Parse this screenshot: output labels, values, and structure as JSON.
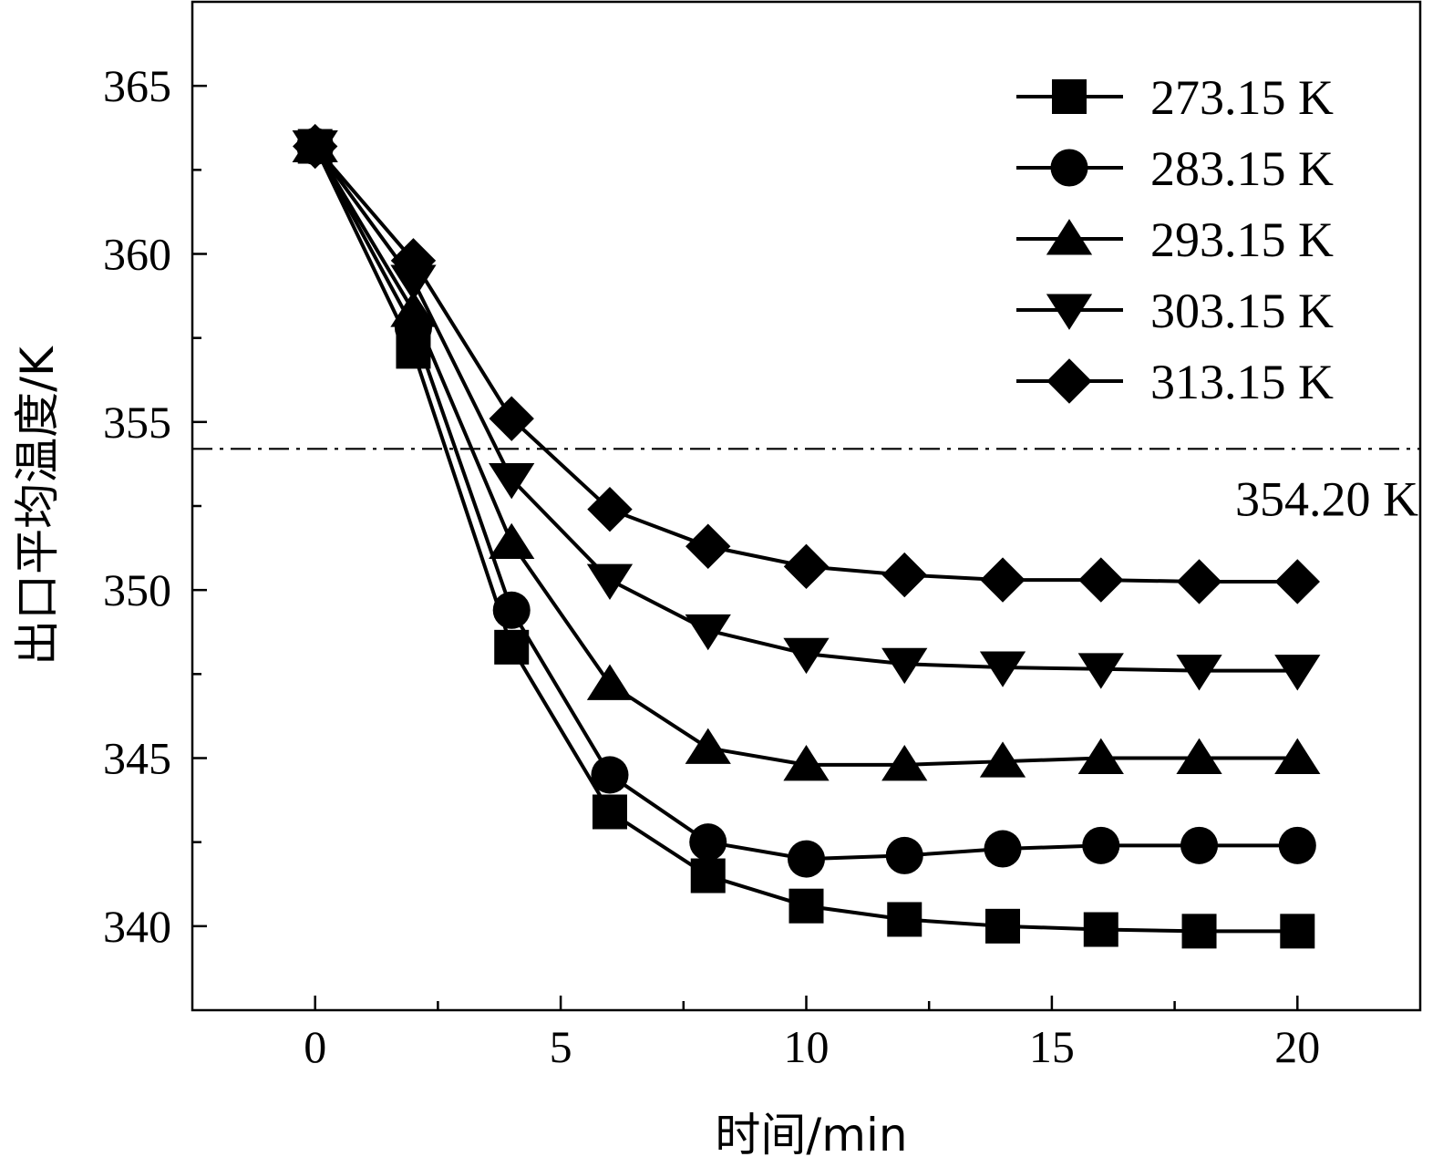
{
  "chart_data": {
    "type": "line",
    "title": "",
    "xlabel": "时间/min",
    "ylabel": "出口平均温度/K",
    "xlim": [
      -2.5,
      22.5
    ],
    "ylim": [
      337.5,
      367.5
    ],
    "xticks": [
      0,
      5,
      10,
      15,
      20
    ],
    "yticks": [
      340,
      345,
      350,
      355,
      360,
      365
    ],
    "legend_position": "top-right",
    "grid": false,
    "x": [
      0,
      2,
      4,
      6,
      8,
      10,
      12,
      14,
      16,
      18,
      20
    ],
    "series": [
      {
        "name": "273.15 K",
        "marker": "square",
        "values": [
          363.2,
          357.1,
          348.3,
          343.4,
          341.5,
          340.6,
          340.2,
          340.0,
          339.9,
          339.85,
          339.85
        ]
      },
      {
        "name": "283.15 K",
        "marker": "circle",
        "values": [
          363.2,
          357.8,
          349.4,
          344.5,
          342.5,
          342.0,
          342.1,
          342.3,
          342.4,
          342.4,
          342.4
        ]
      },
      {
        "name": "293.15 K",
        "marker": "triangle-up",
        "values": [
          363.2,
          358.3,
          351.4,
          347.2,
          345.3,
          344.8,
          344.8,
          344.9,
          345.0,
          345.0,
          345.0
        ]
      },
      {
        "name": "303.15 K",
        "marker": "triangle-down",
        "values": [
          363.2,
          359.2,
          353.3,
          350.3,
          348.8,
          348.1,
          347.8,
          347.7,
          347.65,
          347.6,
          347.6
        ]
      },
      {
        "name": "313.15 K",
        "marker": "diamond",
        "values": [
          363.2,
          359.8,
          355.1,
          352.4,
          351.3,
          350.7,
          350.45,
          350.3,
          350.3,
          350.25,
          350.25
        ]
      }
    ],
    "reference_line": {
      "y": 354.2,
      "label": "354.20 K",
      "style": "dash-dot"
    }
  },
  "colors": {
    "line": "#000000",
    "background": "#ffffff"
  }
}
